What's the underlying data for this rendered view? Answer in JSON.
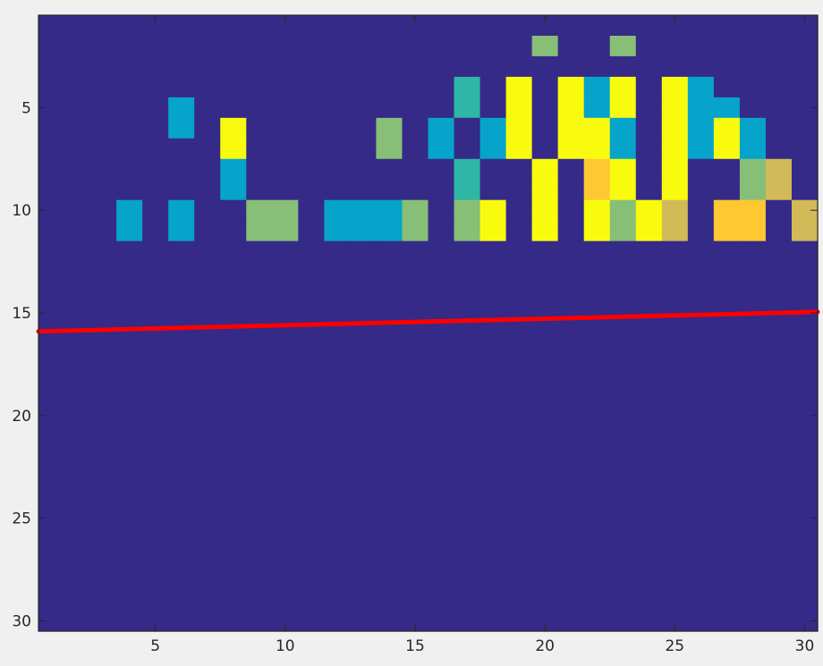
{
  "chart_data": {
    "type": "heatmap",
    "title": "",
    "xlabel": "",
    "ylabel": "",
    "xlim": [
      0.5,
      30.5
    ],
    "ylim": [
      0.5,
      30.5
    ],
    "y_reversed": true,
    "x_ticks": [
      5,
      10,
      15,
      20,
      25,
      30
    ],
    "y_ticks": [
      5,
      10,
      15,
      20,
      25,
      30
    ],
    "x_tick_labels": [
      "5",
      "10",
      "15",
      "20",
      "25",
      "30"
    ],
    "y_tick_labels": [
      "5",
      "10",
      "15",
      "20",
      "25",
      "30"
    ],
    "grid": false,
    "colormap": [
      "#352a87",
      "#0f5cdd",
      "#1481d6",
      "#06a4ca",
      "#2eb7a4",
      "#87bf77",
      "#d1bb59",
      "#fec832",
      "#f9fb0e"
    ],
    "value_range": [
      0,
      8
    ],
    "matrix": [
      "000000000000000000000000000000",
      "000000000000000000050050000000",
      "000900000000000000000000000000",
      "000900000000900040898389839000",
      "000003000000900040898389833000",
      "000003080990959393808839838300",
      "000009080990959393808839838300",
      "000000030000000049989789899560",
      "000000030000000049989789899560",
      "000303005503335958989858697796",
      "000303005503335958989858697796",
      "000000000000000000000000000000",
      "000000000000000000000000000000",
      "000000000000000000000000000000",
      "000000000000000000000000000000",
      "000000000000000000000000000000",
      "000000000000000000000000000000",
      "000000000000000000000000000000",
      "000000000000000000000000000000",
      "000000000000000000000000000000",
      "000000000000000000000000000000",
      "000000000000000000000000000000",
      "000000000000000000000000000000",
      "000000000000000000000000000000",
      "000000000000000000000000000000",
      "000000000000000000000000000000",
      "000000000000000000000000000000",
      "000000000000000000000000000000",
      "000000000000000000000000000000",
      "000000000000000000000000000000"
    ],
    "series": [
      {
        "type": "line",
        "color": "#ff0000",
        "x": [
          0.5,
          30.5
        ],
        "y": [
          15.9,
          14.95
        ]
      }
    ]
  }
}
